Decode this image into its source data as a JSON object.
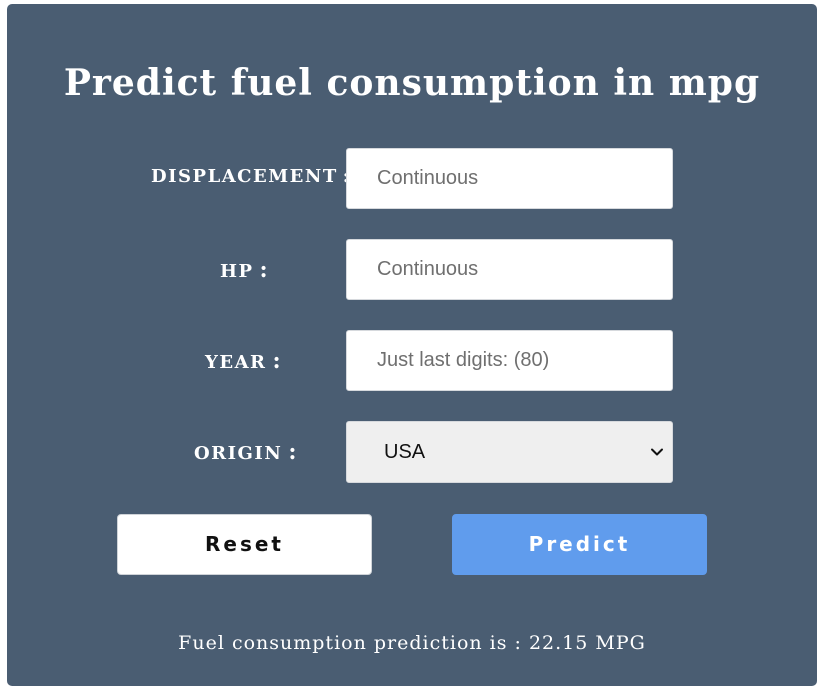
{
  "page": {
    "title": "Predict fuel consumption in mpg"
  },
  "form": {
    "displacement": {
      "label": "DISPLACEMENT",
      "placeholder": "Continuous",
      "value": ""
    },
    "hp": {
      "label": "HP",
      "placeholder": "Continuous",
      "value": ""
    },
    "year": {
      "label": "YEAR",
      "placeholder": "Just last digits: (80)",
      "value": ""
    },
    "origin": {
      "label": "ORIGIN",
      "selected": "USA"
    },
    "colon": ":"
  },
  "buttons": {
    "reset_label": "Reset",
    "predict_label": "Predict"
  },
  "result": {
    "text": "Fuel consumption prediction is : 22.15 MPG"
  },
  "colors": {
    "panel_bg": "#4a5d72",
    "predict_button": "#609ced",
    "text": "#ffffff"
  },
  "icons": {
    "select_arrow": "chevron-down-icon"
  }
}
